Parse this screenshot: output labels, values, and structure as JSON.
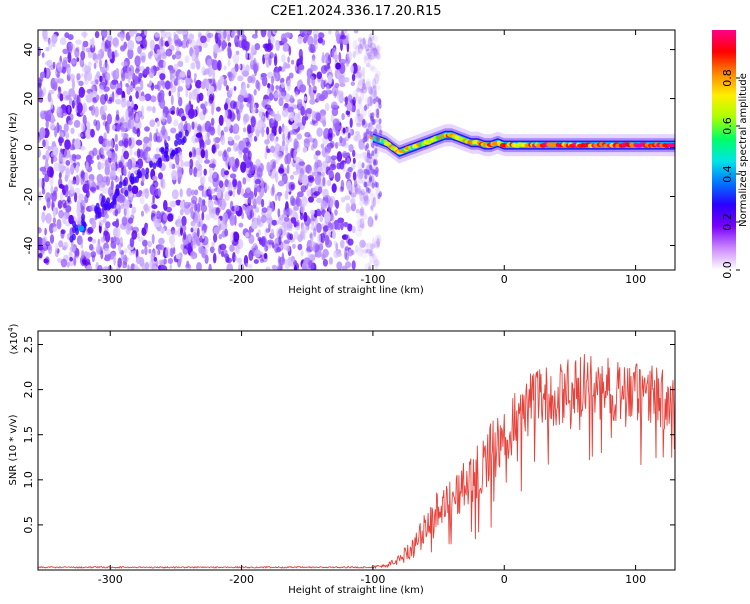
{
  "title": "C2E1.2024.336.17.20.R15",
  "chart_data": [
    {
      "type": "heatmap",
      "title": "C2E1.2024.336.17.20.R15",
      "xlabel": "Height of straight line (km)",
      "ylabel": "Frequency (Hz)",
      "xlim": [
        -355,
        130
      ],
      "ylim": [
        -50,
        48
      ],
      "xticks": [
        -300,
        -200,
        -100,
        0,
        100
      ],
      "yticks": [
        -40,
        -20,
        0,
        20,
        40
      ],
      "colorbar": {
        "label": "Normalized spectral amplitude",
        "range": [
          0.0,
          1.0
        ],
        "ticks": [
          0.0,
          0.2,
          0.4,
          0.6,
          0.8
        ],
        "colors": [
          "#ffffff",
          "#cc88ff",
          "#7a00ff",
          "#2a00ff",
          "#0077ff",
          "#00e5e5",
          "#00ff66",
          "#aaff00",
          "#ffee00",
          "#ff8800",
          "#ff0000",
          "#ff0088"
        ]
      },
      "noise_region_x": [
        -355,
        -100
      ],
      "signal_line": {
        "x": [
          -100,
          -95,
          -90,
          -85,
          -80,
          -75,
          -70,
          -65,
          -60,
          -55,
          -50,
          -45,
          -40,
          -35,
          -30,
          -25,
          -20,
          -15,
          -10,
          -5,
          0,
          10,
          20,
          40,
          60,
          80,
          100,
          120,
          130
        ],
        "y": [
          4,
          3,
          2,
          0,
          -2,
          -1,
          0,
          1,
          2,
          3,
          4,
          5,
          5,
          4,
          3,
          2,
          2,
          1,
          1,
          2,
          1,
          1,
          1,
          1,
          1,
          1,
          1,
          1,
          1
        ]
      }
    },
    {
      "type": "line",
      "xlabel": "Height of straight line (km)",
      "ylabel": "SNR (10 * v/v)",
      "y_multiplier": "(x10⁴)",
      "y_multiplier_base": "(x10",
      "y_multiplier_exp": "4",
      "y_multiplier_close": ")",
      "xlim": [
        -355,
        130
      ],
      "ylim": [
        0,
        2.65
      ],
      "xticks": [
        -300,
        -200,
        -100,
        0,
        100
      ],
      "yticks": [
        0.5,
        1.0,
        1.5,
        2.0,
        2.5
      ],
      "series": [
        {
          "color": "#e8413a",
          "x": [
            -355,
            -100,
            -95,
            -90,
            -85,
            -80,
            -75,
            -70,
            -65,
            -60,
            -55,
            -50,
            -45,
            -40,
            -35,
            -30,
            -25,
            -20,
            -15,
            -10,
            -5,
            0,
            5,
            10,
            15,
            20,
            30,
            40,
            50,
            60,
            70,
            80,
            90,
            100,
            110,
            120,
            130
          ],
          "y": [
            0.03,
            0.03,
            0.04,
            0.05,
            0.08,
            0.12,
            0.18,
            0.25,
            0.35,
            0.45,
            0.6,
            0.7,
            0.8,
            0.8,
            0.85,
            0.95,
            1.0,
            1.1,
            1.2,
            1.3,
            1.35,
            1.5,
            1.6,
            1.7,
            1.8,
            1.85,
            1.9,
            1.95,
            2.0,
            2.05,
            2.0,
            2.0,
            2.0,
            1.95,
            1.95,
            1.9,
            1.95
          ],
          "noise_amplitude": 0.2
        }
      ]
    }
  ]
}
